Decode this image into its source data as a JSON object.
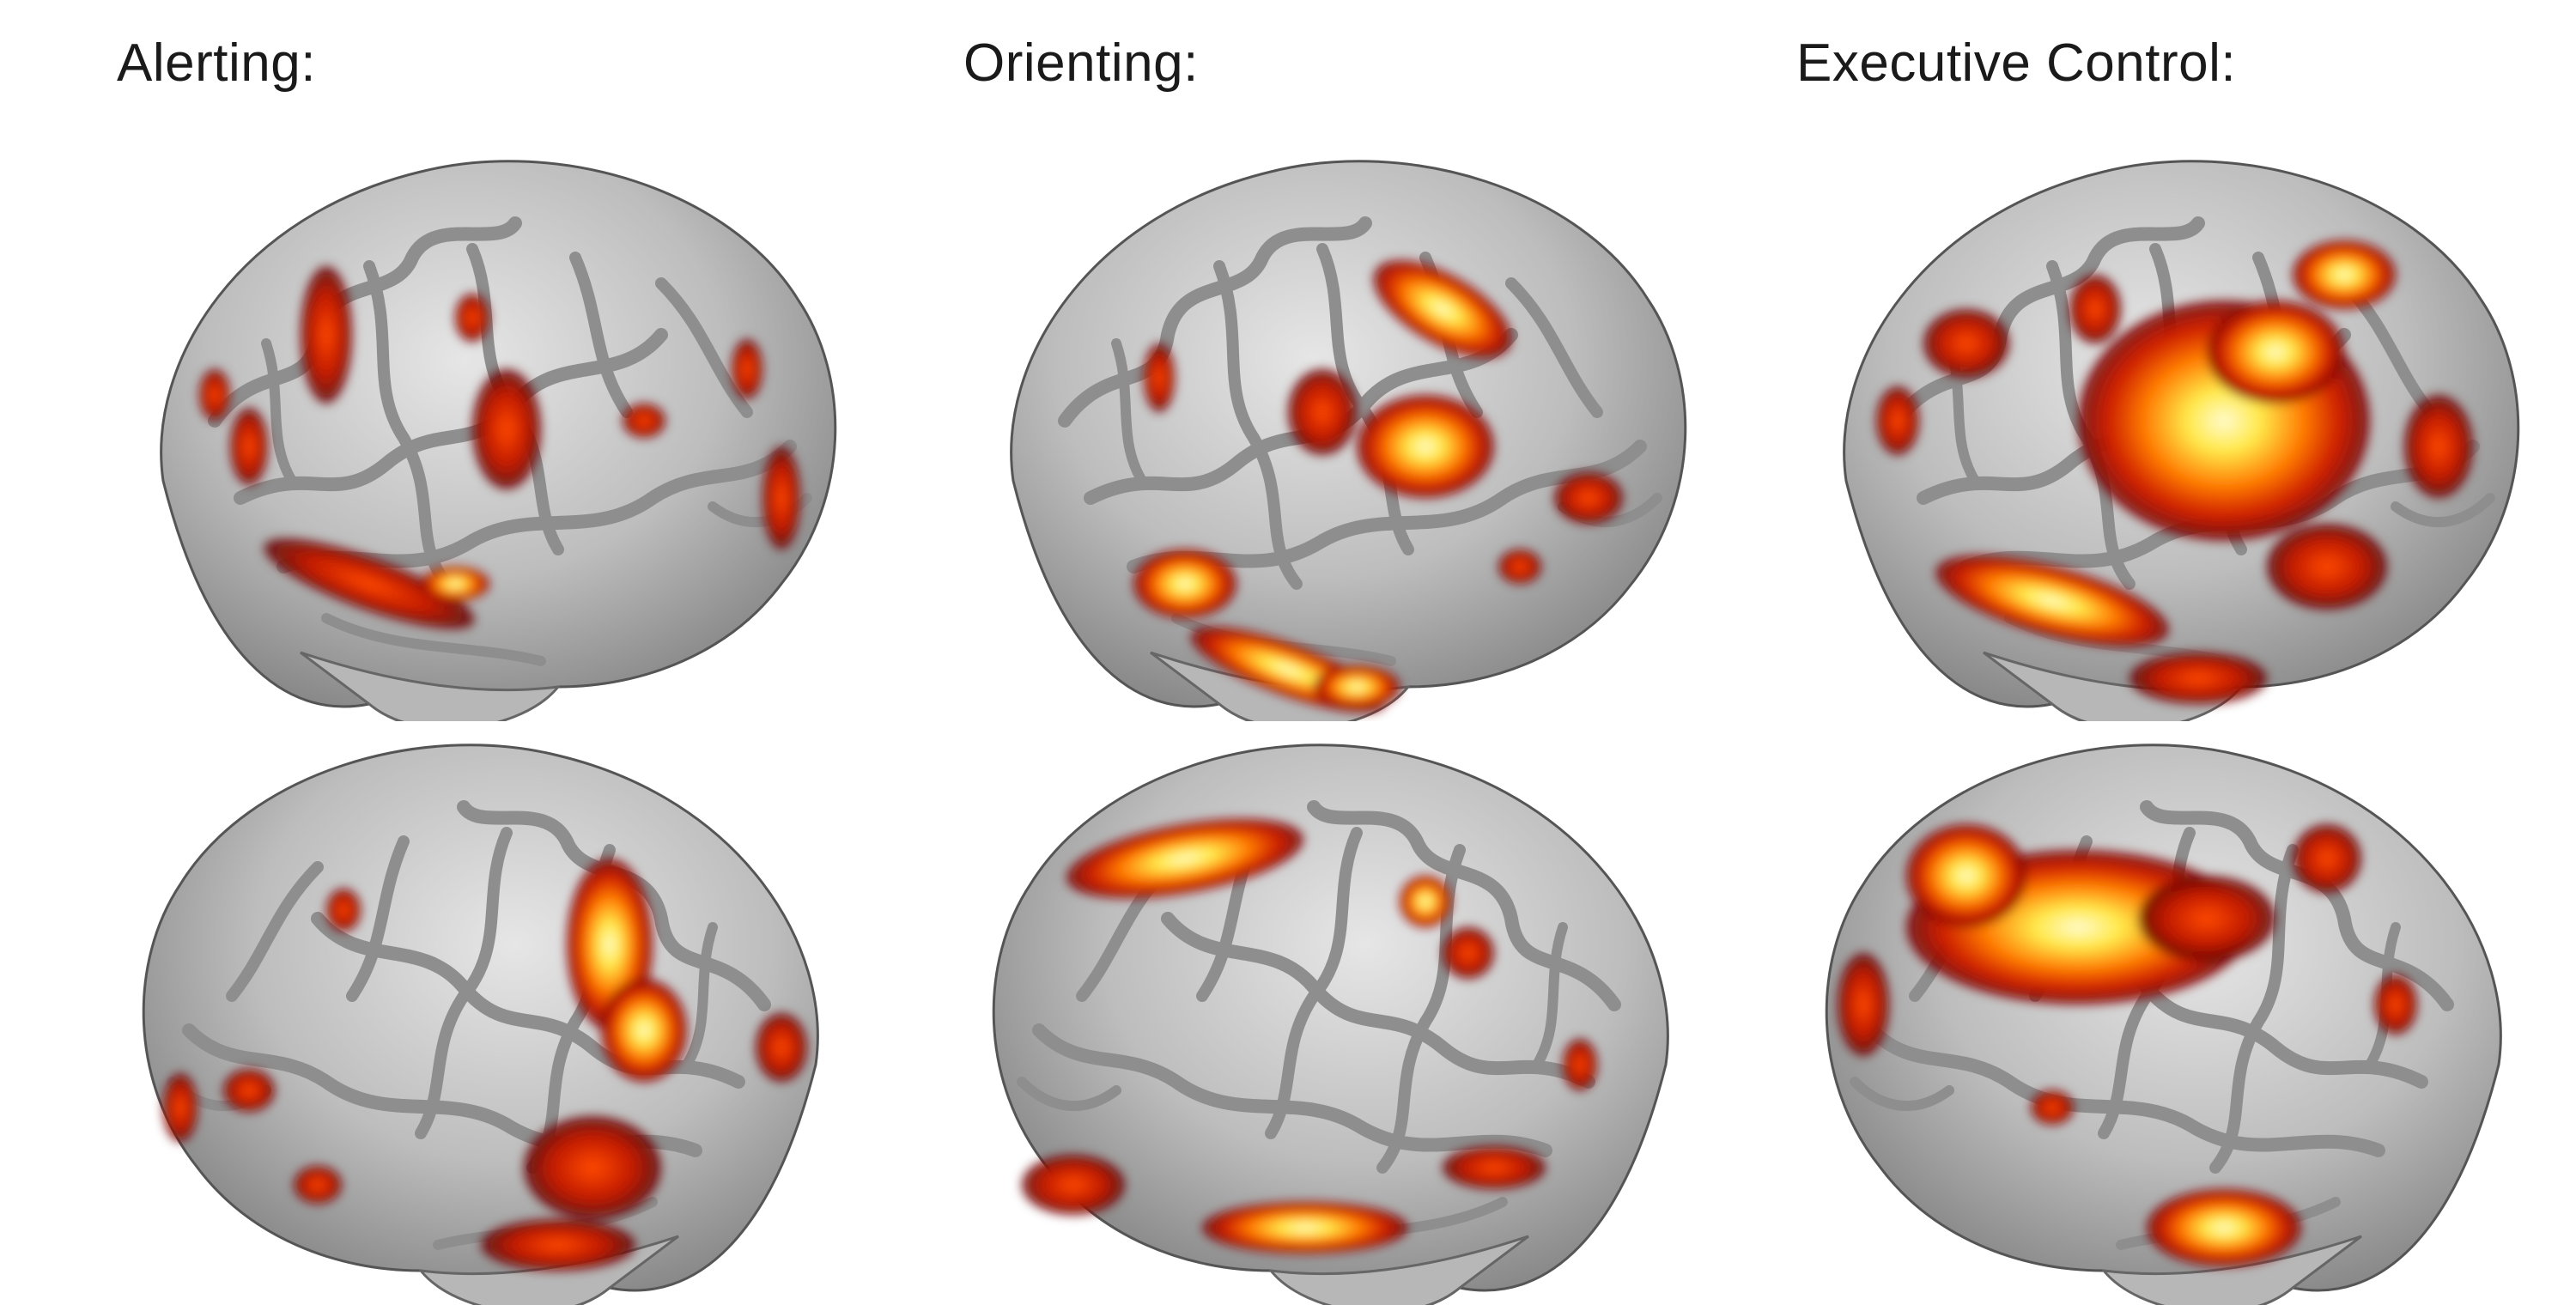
{
  "panels": [
    {
      "title": "Alerting:"
    },
    {
      "title": "Orienting:"
    },
    {
      "title": "Executive Control:"
    }
  ],
  "colors": {
    "background": "#ffffff",
    "cortex_light": "#c8c8c8",
    "cortex_dark": "#7a7a7a",
    "activation_low": "#6e0000",
    "activation_mid": "#d22a00",
    "activation_high": "#ff8c00",
    "activation_peak": "#fff27a"
  }
}
